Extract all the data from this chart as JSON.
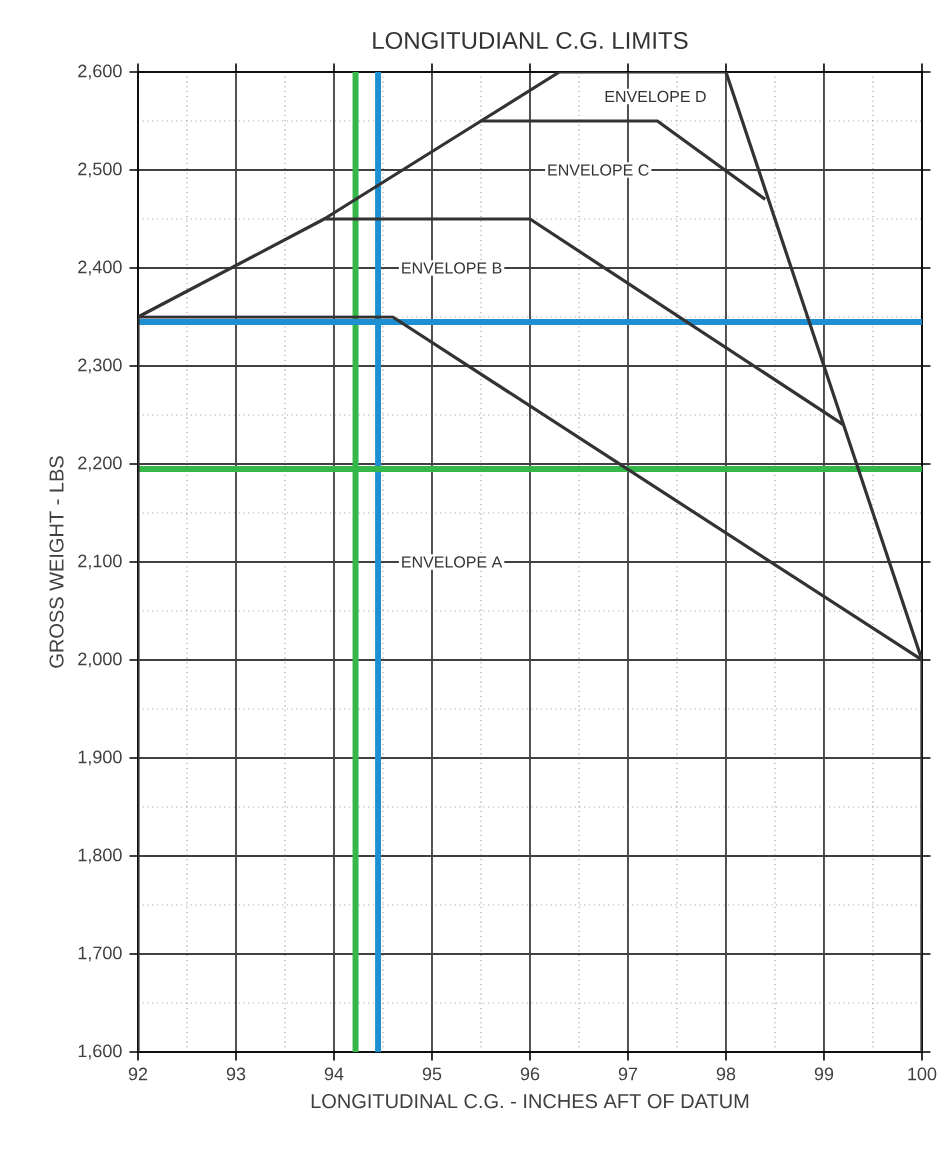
{
  "chart_data": {
    "type": "line",
    "title": "LONGITUDIANL C.G. LIMITS",
    "xlabel": "LONGITUDINAL C.G. - INCHES AFT OF DATUM",
    "ylabel": "GROSS WEIGHT - LBS",
    "series": [
      {
        "color": "#333333",
        "x": [
          92,
          92,
          94.6,
          100,
          100
        ],
        "values": [
          1600,
          2350,
          2350,
          2000,
          1600
        ]
      },
      {
        "color": "#333333",
        "x": [
          92,
          93.9,
          96,
          99.2
        ],
        "values": [
          2350,
          2450,
          2450,
          2240
        ]
      },
      {
        "color": "#333333",
        "x": [
          93.9,
          95.5,
          97.3,
          98.4
        ],
        "values": [
          2450,
          2550,
          2550,
          2470
        ]
      },
      {
        "color": "#333333",
        "x": [
          95.5,
          96.3,
          98,
          100
        ],
        "values": [
          2550,
          2600,
          2600,
          2000
        ]
      }
    ],
    "annotations": [
      "ENVELOPE A",
      "ENVELOPE B",
      "ENVELOPE C",
      "ENVELOPE D"
    ],
    "ref_lines": [
      {
        "axis": "x",
        "value": 94.22,
        "color": "#35b84a"
      },
      {
        "axis": "x",
        "value": 94.45,
        "color": "#1e8fd0"
      },
      {
        "axis": "y",
        "value": 2345,
        "color": "#1e8fd0"
      },
      {
        "axis": "y",
        "value": 2195,
        "color": "#35b84a"
      }
    ],
    "xlim": [
      92,
      100
    ],
    "ylim": [
      1600,
      2600
    ],
    "xticks": [
      92,
      93,
      94,
      95,
      96,
      97,
      98,
      99,
      100
    ],
    "yticks": [
      {
        "value": 1600,
        "label": "1,600"
      },
      {
        "value": 1700,
        "label": "1,700"
      },
      {
        "value": 1800,
        "label": "1,800"
      },
      {
        "value": 1900,
        "label": "1,900"
      },
      {
        "value": 2000,
        "label": "2,000"
      },
      {
        "value": 2100,
        "label": "2,100"
      },
      {
        "value": 2200,
        "label": "2,200"
      },
      {
        "value": 2300,
        "label": "2,300"
      },
      {
        "value": 2400,
        "label": "2,400"
      },
      {
        "value": 2500,
        "label": "2,500"
      },
      {
        "value": 2600,
        "label": "2,600"
      }
    ],
    "grid": true,
    "marker": "none",
    "line_style": "solid"
  }
}
